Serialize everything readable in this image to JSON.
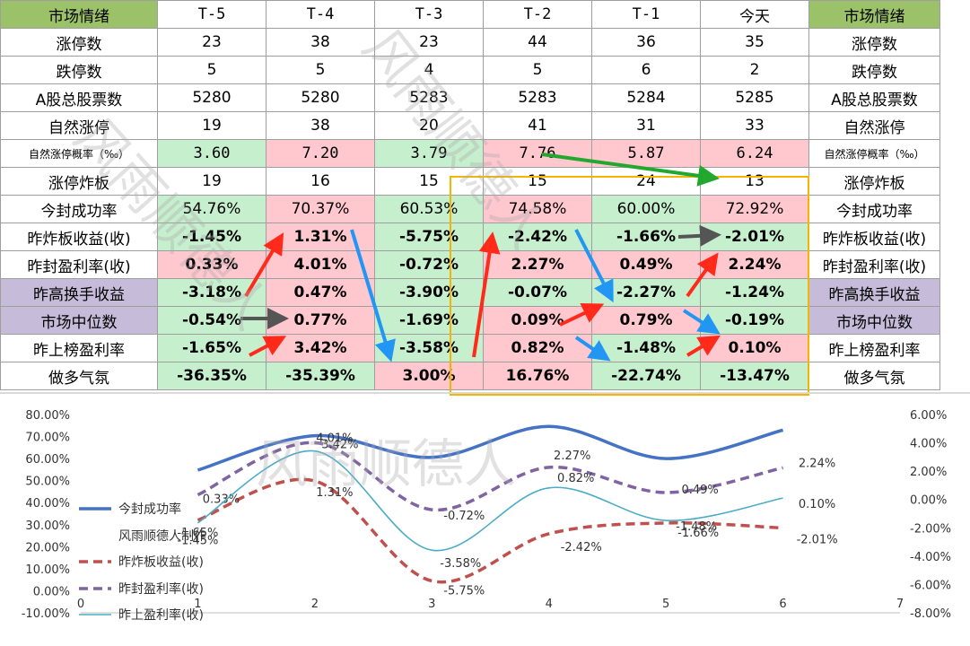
{
  "header": [
    "市场情绪",
    "T-5",
    "T-4",
    "T-3",
    "T-2",
    "T-1",
    "今天",
    "市场情绪"
  ],
  "rows": [
    {
      "label": "涨停数",
      "values": [
        "23",
        "38",
        "23",
        "44",
        "36",
        "35"
      ]
    },
    {
      "label": "跌停数",
      "values": [
        "5",
        "5",
        "4",
        "5",
        "6",
        "2"
      ]
    },
    {
      "label": "A股总股票数",
      "values": [
        "5280",
        "5280",
        "5283",
        "5283",
        "5284",
        "5285"
      ]
    },
    {
      "label": "自然涨停",
      "values": [
        "19",
        "38",
        "20",
        "41",
        "31",
        "33"
      ]
    },
    {
      "label": "自然涨停概率（‰）",
      "values": [
        "3.60",
        "7.20",
        "3.79",
        "7.76",
        "5.87",
        "6.24"
      ]
    },
    {
      "label": "涨停炸板",
      "values": [
        "19",
        "16",
        "15",
        "15",
        "24",
        "13"
      ]
    },
    {
      "label": "今封成功率",
      "values": [
        "54.76%",
        "70.37%",
        "60.53%",
        "74.58%",
        "60.00%",
        "72.92%"
      ]
    },
    {
      "label": "昨炸板收益(收)",
      "values": [
        "-1.45%",
        "1.31%",
        "-5.75%",
        "-2.42%",
        "-1.66%",
        "-2.01%"
      ]
    },
    {
      "label": "昨封盈利率(收)",
      "values": [
        "0.33%",
        "4.01%",
        "-0.72%",
        "2.27%",
        "0.49%",
        "2.24%"
      ]
    },
    {
      "label": "昨高换手收益",
      "values": [
        "-3.18%",
        "0.47%",
        "-3.90%",
        "-0.07%",
        "-2.27%",
        "-1.24%"
      ]
    },
    {
      "label": "市场中位数",
      "values": [
        "-0.54%",
        "0.77%",
        "-1.69%",
        "0.09%",
        "0.79%",
        "-0.19%"
      ]
    },
    {
      "label": "昨上榜盈利率",
      "values": [
        "-1.65%",
        "3.42%",
        "-3.58%",
        "0.82%",
        "-1.48%",
        "0.10%"
      ]
    },
    {
      "label": "做多气氛",
      "values": [
        "-36.35%",
        "-35.39%",
        "3.00%",
        "16.76%",
        "-22.74%",
        "-13.47%"
      ]
    }
  ],
  "watermark": "风雨顺德人",
  "colors": {
    "header_green": "#9bc269",
    "purple": "#c6bcd9",
    "good_bg": "#c6efce",
    "bad_bg": "#ffc7ce",
    "frame": "#f4b400",
    "arrow_red": "#ff2a1a",
    "arrow_blue": "#2196f3",
    "arrow_green": "#22a82e",
    "arrow_gray": "#555555"
  },
  "chart_data": {
    "type": "line",
    "x": [
      1,
      2,
      3,
      4,
      5,
      6
    ],
    "xlim": [
      0,
      7
    ],
    "x_ticks": [
      "0",
      "1",
      "2",
      "3",
      "4",
      "5",
      "6",
      "7"
    ],
    "y_left_ticks": [
      "80.00%",
      "70.00%",
      "60.00%",
      "50.00%",
      "40.00%",
      "30.00%",
      "20.00%",
      "10.00%",
      "0.00%",
      "-10.00%"
    ],
    "y_left_lim": [
      -10,
      80
    ],
    "y_right_ticks": [
      "6.00%",
      "4.00%",
      "2.00%",
      "0.00%",
      "-2.00%",
      "-4.00%",
      "-6.00%",
      "-8.00%"
    ],
    "y_right_lim": [
      -8,
      6
    ],
    "series": [
      {
        "name": "今封成功率",
        "axis": "left",
        "values": [
          54.76,
          70.37,
          60.53,
          74.58,
          60.0,
          72.92
        ],
        "color": "#4472c4",
        "dash": "solid"
      },
      {
        "name": "昨炸板收益(收)",
        "axis": "right",
        "values": [
          -1.45,
          1.31,
          -5.75,
          -2.42,
          -1.66,
          -2.01
        ],
        "labels": [
          "-1.45%",
          "1.31%",
          "-5.75%",
          "-2.42%",
          "-1.66%",
          "-2.01%"
        ],
        "color": "#c0504d",
        "dash": "dashed"
      },
      {
        "name": "昨封盈利率(收)",
        "axis": "right",
        "values": [
          0.33,
          4.01,
          -0.72,
          2.27,
          0.49,
          2.24
        ],
        "labels": [
          "0.33%",
          "4.01%",
          "-0.72%",
          "2.27%",
          "0.49%",
          "2.24%"
        ],
        "color": "#8064a2",
        "dash": "dashed"
      },
      {
        "name": "昨上盈利率(收)",
        "axis": "right",
        "values": [
          -1.65,
          3.42,
          -3.58,
          0.82,
          -1.48,
          0.1
        ],
        "labels": [
          "-1.65%",
          "3.42%",
          "-3.58%",
          "0.82%",
          "-1.48%",
          "0.10%"
        ],
        "color": "#4bacc6",
        "dash": "solid"
      }
    ],
    "legend_note": "风雨顺德人制作",
    "legend_position": "left"
  }
}
